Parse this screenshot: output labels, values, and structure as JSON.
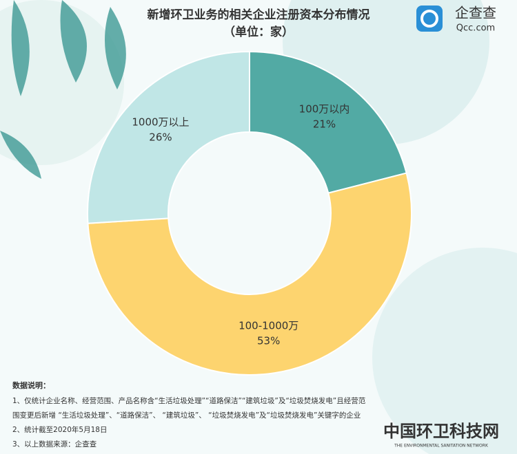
{
  "chart_data": {
    "type": "donut",
    "title": "新增环卫业务的相关企业注册资本分布情况",
    "subtitle": "（单位：家）",
    "categories": [
      "100万以内",
      "100-1000万",
      "1000万以上"
    ],
    "values": [
      21,
      53,
      26
    ],
    "value_labels": [
      "21%",
      "53%",
      "26%"
    ],
    "colors": [
      "#52aaa4",
      "#fdd46f",
      "#c0e6e6"
    ],
    "notes_title": "数据说明：",
    "notes": [
      "1、仅统计企业名称、经营范围、产品名称含“生活垃圾处理”“道路保洁”“建筑垃圾”及“垃圾焚烧发电”且经营范",
      "围变更后新增 “生活垃圾处理”、“道路保洁”、 “建筑垃圾”、 “垃圾焚烧发电”及“垃圾焚烧发电”关键字的企业",
      "2、统计截至2020年5月18日",
      "3、以上数据来源：企查查"
    ]
  },
  "logo": {
    "name": "企查查",
    "domain": "Qcc.com"
  },
  "watermark": {
    "name": "中国环卫科技网",
    "subtitle": "THE ENVIRONMENTAL SANITATION NETWORK"
  }
}
